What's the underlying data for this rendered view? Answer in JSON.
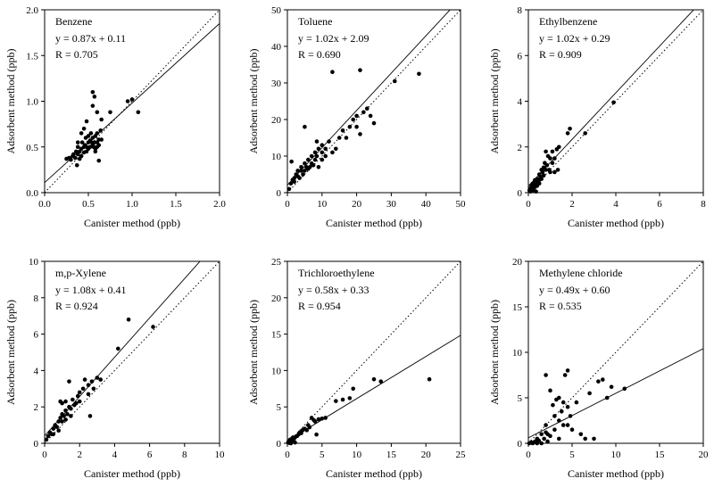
{
  "chart_data": [
    {
      "type": "scatter",
      "title": "Benzene",
      "equation": "y = 0.87x + 0.11",
      "r_text": "R = 0.705",
      "xlabel": "Canister method (ppb)",
      "ylabel": "Adsorbent method (ppb)",
      "xlim": [
        0,
        2
      ],
      "ylim": [
        0,
        2
      ],
      "xticks": [
        "0.0",
        "0.5",
        "1.0",
        "1.5",
        "2.0"
      ],
      "yticks": [
        "0.0",
        "0.5",
        "1.0",
        "1.5",
        "2.0"
      ],
      "fit": {
        "slope": 0.87,
        "intercept": 0.11
      },
      "identity_line": true,
      "x": [
        0.25,
        0.28,
        0.3,
        0.32,
        0.33,
        0.35,
        0.36,
        0.37,
        0.38,
        0.38,
        0.4,
        0.4,
        0.42,
        0.42,
        0.43,
        0.45,
        0.45,
        0.46,
        0.47,
        0.48,
        0.48,
        0.5,
        0.5,
        0.5,
        0.52,
        0.52,
        0.53,
        0.54,
        0.55,
        0.55,
        0.56,
        0.57,
        0.58,
        0.58,
        0.6,
        0.6,
        0.6,
        0.62,
        0.62,
        0.64,
        0.65,
        0.55,
        0.57,
        0.55,
        0.6,
        0.65,
        0.75,
        0.48,
        0.38,
        0.42,
        0.45,
        0.95,
        1.0,
        1.07,
        0.62,
        0.58
      ],
      "y": [
        0.37,
        0.38,
        0.36,
        0.4,
        0.42,
        0.38,
        0.45,
        0.3,
        0.42,
        0.5,
        0.37,
        0.45,
        0.4,
        0.48,
        0.55,
        0.5,
        0.44,
        0.52,
        0.6,
        0.5,
        0.45,
        0.55,
        0.48,
        0.62,
        0.5,
        0.57,
        0.65,
        0.55,
        0.52,
        0.6,
        0.5,
        0.55,
        0.48,
        0.62,
        0.55,
        0.5,
        0.65,
        0.52,
        0.58,
        0.68,
        0.58,
        1.1,
        1.05,
        0.95,
        0.88,
        0.8,
        0.88,
        0.78,
        0.55,
        0.65,
        0.7,
        1.0,
        1.02,
        0.88,
        0.35,
        0.45
      ]
    },
    {
      "type": "scatter",
      "title": "Toluene",
      "equation": "y = 1.02x + 2.09",
      "r_text": "R = 0.690",
      "xlabel": "Canister method (ppb)",
      "ylabel": "Adsorbent method (ppb)",
      "xlim": [
        0,
        50
      ],
      "ylim": [
        0,
        50
      ],
      "xticks": [
        "0",
        "10",
        "20",
        "30",
        "40",
        "50"
      ],
      "yticks": [
        "0",
        "10",
        "20",
        "30",
        "40",
        "50"
      ],
      "fit": {
        "slope": 1.02,
        "intercept": 2.09
      },
      "identity_line": true,
      "x": [
        0.5,
        1,
        1.5,
        2,
        2,
        2.5,
        3,
        3,
        3.5,
        4,
        4,
        4.5,
        5,
        5,
        5.5,
        6,
        6,
        6.5,
        7,
        7,
        7.5,
        8,
        8,
        8.5,
        9,
        9,
        10,
        10,
        10,
        11,
        11,
        12,
        13,
        14,
        15,
        16,
        17,
        18,
        19,
        20,
        20,
        21,
        22,
        23,
        24,
        25,
        13,
        21,
        31,
        38,
        1.2,
        5,
        8.5
      ],
      "y": [
        1,
        2.5,
        3.5,
        4,
        3,
        5,
        6,
        4.5,
        4,
        6,
        7,
        5,
        6,
        8,
        7,
        6.5,
        9,
        7,
        8,
        10,
        7.5,
        9,
        11,
        10,
        7,
        12,
        9,
        11,
        13,
        10,
        12,
        14,
        11,
        12,
        15,
        17,
        15,
        18,
        20,
        18,
        21,
        16,
        22,
        23,
        21,
        19,
        33,
        33.5,
        30.5,
        32.5,
        8.5,
        18,
        14
      ]
    },
    {
      "type": "scatter",
      "title": "Ethylbenzene",
      "equation": "y = 1.02x + 0.29",
      "r_text": "R = 0.909",
      "xlabel": "Canister method (ppb)",
      "ylabel": "Adsorbent method (ppb)",
      "xlim": [
        0,
        8
      ],
      "ylim": [
        0,
        8
      ],
      "xticks": [
        "0",
        "2",
        "4",
        "6",
        "8"
      ],
      "yticks": [
        "0",
        "2",
        "4",
        "6",
        "8"
      ],
      "fit": {
        "slope": 1.02,
        "intercept": 0.29
      },
      "identity_line": true,
      "x": [
        0.05,
        0.1,
        0.1,
        0.15,
        0.2,
        0.2,
        0.25,
        0.3,
        0.3,
        0.35,
        0.4,
        0.4,
        0.45,
        0.5,
        0.5,
        0.55,
        0.6,
        0.6,
        0.65,
        0.7,
        0.7,
        0.75,
        0.8,
        0.85,
        0.9,
        0.95,
        1.0,
        1.0,
        1.1,
        1.1,
        1.2,
        1.2,
        1.3,
        1.35,
        1.4,
        1.8,
        1.9,
        2.6,
        3.9,
        0.8,
        0.5,
        0.3,
        0.15,
        0.25,
        0.35
      ],
      "y": [
        0.1,
        0.2,
        0.05,
        0.3,
        0.2,
        0.4,
        0.3,
        0.5,
        0.25,
        0.4,
        0.6,
        0.3,
        0.5,
        0.8,
        0.55,
        0.7,
        1.0,
        0.6,
        0.9,
        1.1,
        0.75,
        1.3,
        1.0,
        1.2,
        1.6,
        1.0,
        1.5,
        0.9,
        1.3,
        1.8,
        1.5,
        0.9,
        1.9,
        1.0,
        2.0,
        2.6,
        2.8,
        2.6,
        3.95,
        1.8,
        0.4,
        0.55,
        0.25,
        0.1,
        0.05
      ]
    },
    {
      "type": "scatter",
      "title": "m,p-Xylene",
      "equation": "y = 1.08x + 0.41",
      "r_text": "R = 0.924",
      "xlabel": "Canister method (ppb)",
      "ylabel": "Adsorbent method (ppb)",
      "xlim": [
        0,
        10
      ],
      "ylim": [
        0,
        10
      ],
      "xticks": [
        "0",
        "2",
        "4",
        "6",
        "8",
        "10"
      ],
      "yticks": [
        "0",
        "2",
        "4",
        "6",
        "8",
        "10"
      ],
      "fit": {
        "slope": 1.08,
        "intercept": 0.41
      },
      "identity_line": true,
      "x": [
        0.1,
        0.2,
        0.3,
        0.4,
        0.5,
        0.5,
        0.6,
        0.7,
        0.8,
        0.8,
        0.9,
        1.0,
        1.0,
        1.1,
        1.2,
        1.2,
        1.3,
        1.4,
        1.5,
        1.5,
        1.6,
        1.7,
        1.8,
        1.9,
        2.0,
        2.0,
        2.2,
        2.3,
        2.5,
        2.5,
        2.7,
        2.8,
        3.0,
        3.2,
        4.2,
        4.8,
        6.2,
        1.2,
        1.4,
        1.0,
        0.9,
        2.6
      ],
      "y": [
        0.2,
        0.4,
        0.6,
        0.5,
        0.8,
        0.5,
        1.0,
        0.9,
        1.2,
        0.7,
        1.4,
        1.6,
        1.2,
        1.5,
        1.8,
        1.3,
        1.6,
        2.0,
        1.9,
        1.5,
        2.4,
        2.1,
        2.2,
        2.6,
        2.8,
        2.3,
        3.0,
        3.5,
        3.2,
        2.7,
        3.4,
        3.0,
        3.6,
        3.5,
        5.2,
        6.8,
        6.4,
        2.3,
        3.4,
        2.2,
        2.3,
        1.5
      ]
    },
    {
      "type": "scatter",
      "title": "Trichloroethylene",
      "equation": "y = 0.58x + 0.33",
      "r_text": "R = 0.954",
      "xlabel": "Canister method (ppb)",
      "ylabel": "Adsorbent method (ppb)",
      "xlim": [
        0,
        25
      ],
      "ylim": [
        0,
        25
      ],
      "xticks": [
        "0",
        "5",
        "10",
        "15",
        "20",
        "25"
      ],
      "yticks": [
        "0",
        "5",
        "10",
        "15",
        "20",
        "25"
      ],
      "fit": {
        "slope": 0.58,
        "intercept": 0.33
      },
      "identity_line": true,
      "x": [
        0.1,
        0.2,
        0.3,
        0.4,
        0.5,
        0.6,
        0.7,
        0.8,
        0.9,
        1.0,
        1.2,
        1.4,
        1.6,
        1.8,
        2.0,
        2.2,
        2.5,
        2.8,
        3.0,
        3.2,
        3.5,
        3.8,
        4.0,
        4.5,
        5.0,
        5.5,
        7.0,
        8.0,
        9.0,
        9.5,
        12.5,
        13.5,
        20.5,
        0.3,
        0.5,
        0.8,
        1.1,
        4.2
      ],
      "y": [
        0.1,
        0.3,
        0.2,
        0.5,
        0.3,
        0.6,
        0.4,
        0.8,
        0.5,
        0.7,
        0.9,
        1.0,
        1.2,
        1.5,
        1.4,
        1.8,
        2.0,
        1.8,
        2.5,
        2.2,
        3.5,
        3.2,
        3.0,
        3.3,
        3.4,
        3.5,
        5.8,
        6.0,
        6.2,
        7.5,
        8.8,
        8.5,
        8.8,
        0.05,
        0.0,
        0.3,
        0.1,
        1.2
      ]
    },
    {
      "type": "scatter",
      "title": "Methylene chloride",
      "equation": "y = 0.49x + 0.60",
      "r_text": "R = 0.535",
      "xlabel": "Canister method (ppb)",
      "ylabel": "Adsorbent method (ppb)",
      "xlim": [
        0,
        20
      ],
      "ylim": [
        0,
        20
      ],
      "xticks": [
        "0",
        "5",
        "10",
        "15",
        "20"
      ],
      "yticks": [
        "0",
        "5",
        "10",
        "15",
        "20"
      ],
      "fit": {
        "slope": 0.49,
        "intercept": 0.6
      },
      "identity_line": true,
      "x": [
        0.1,
        0.3,
        0.5,
        0.8,
        1.0,
        1.2,
        1.5,
        1.8,
        2.0,
        2.0,
        2.2,
        2.5,
        2.5,
        2.8,
        3.0,
        3.0,
        3.2,
        3.5,
        3.5,
        3.8,
        4.0,
        4.0,
        4.2,
        4.5,
        4.5,
        4.8,
        5.0,
        5.5,
        6.0,
        6.5,
        7.0,
        7.5,
        8.0,
        8.5,
        9.0,
        9.5,
        11.0,
        2.0,
        2.2,
        3.5,
        4.5,
        1.0,
        1.5,
        0.6
      ],
      "y": [
        0.0,
        0.1,
        0.0,
        0.2,
        0.5,
        0.3,
        1.0,
        0.5,
        2.0,
        7.5,
        1.0,
        5.8,
        0.8,
        4.2,
        1.5,
        3.0,
        4.8,
        5.0,
        2.5,
        3.5,
        4.5,
        2.0,
        7.5,
        8.0,
        4.0,
        3.0,
        1.5,
        4.5,
        1.0,
        0.5,
        5.5,
        0.5,
        6.8,
        7.0,
        5.0,
        6.2,
        6.0,
        1.2,
        0.2,
        0.5,
        2.0,
        0.0,
        0.0,
        0.1
      ]
    }
  ]
}
